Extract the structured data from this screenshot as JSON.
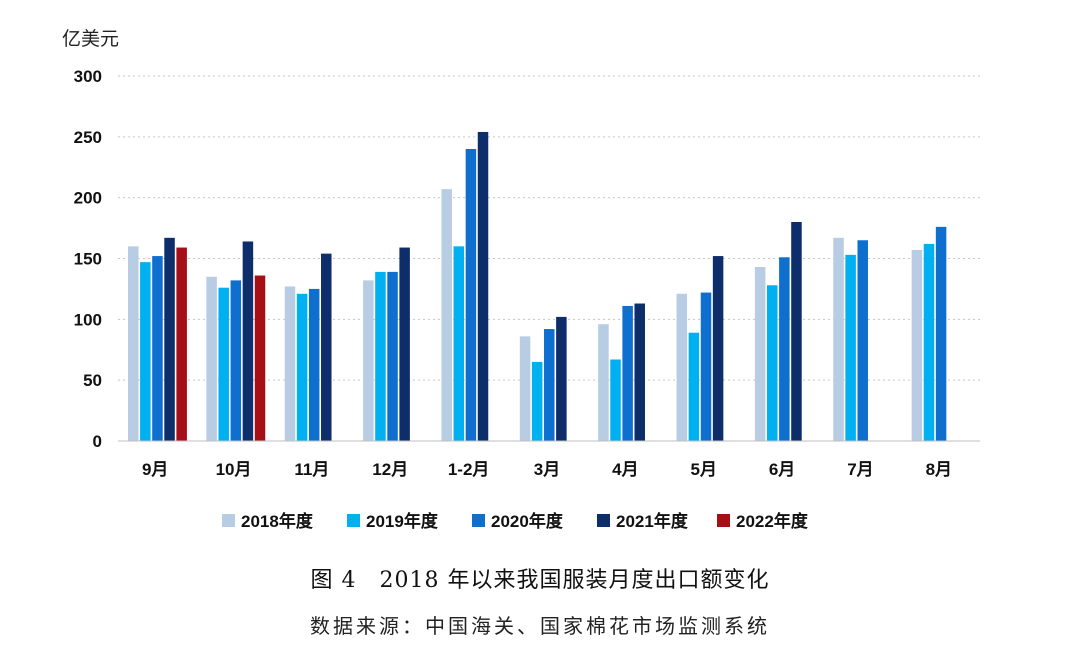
{
  "chart_data": {
    "type": "bar",
    "title": "",
    "ylabel": "亿美元",
    "xlabel": "",
    "ylim": [
      0,
      300
    ],
    "yticks": [
      0,
      50,
      100,
      150,
      200,
      250,
      300
    ],
    "grid": true,
    "legend_position": "bottom",
    "categories": [
      "9月",
      "10月",
      "11月",
      "12月",
      "1-2月",
      "3月",
      "4月",
      "5月",
      "6月",
      "7月",
      "8月"
    ],
    "series": [
      {
        "name": "2018年度",
        "color": "#b8cce4",
        "values": [
          160,
          135,
          127,
          132,
          207,
          86,
          96,
          121,
          143,
          167,
          157
        ]
      },
      {
        "name": "2019年度",
        "color": "#00b0f0",
        "values": [
          147,
          126,
          121,
          139,
          160,
          65,
          67,
          89,
          128,
          153,
          162
        ]
      },
      {
        "name": "2020年度",
        "color": "#0f6fcf",
        "values": [
          152,
          132,
          125,
          139,
          240,
          92,
          111,
          122,
          151,
          165,
          176
        ]
      },
      {
        "name": "2021年度",
        "color": "#0d2d6b",
        "values": [
          167,
          164,
          154,
          159,
          254,
          102,
          113,
          152,
          180,
          null,
          null
        ]
      },
      {
        "name": "2022年度",
        "color": "#a50f15",
        "values": [
          159,
          136,
          null,
          null,
          null,
          null,
          null,
          null,
          null,
          null,
          null
        ]
      }
    ]
  },
  "figure": {
    "title": "图 4　2018 年以来我国服装月度出口额变化",
    "source": "数据来源：中国海关、国家棉花市场监测系统"
  }
}
